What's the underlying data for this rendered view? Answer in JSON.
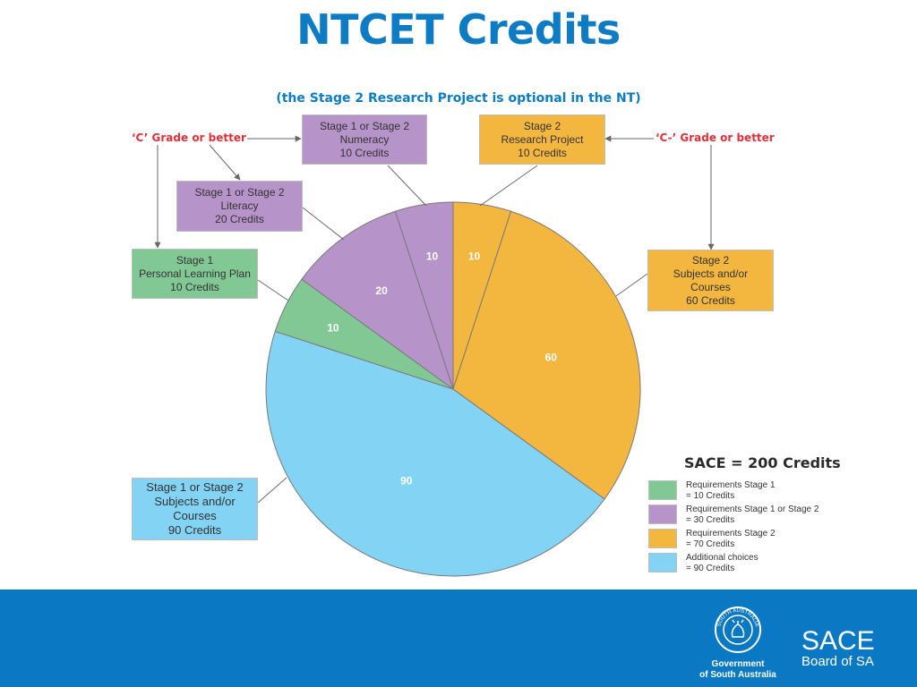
{
  "page": {
    "title": "NTCET Credits",
    "subtitle": "(the Stage 2 Research Project is optional in the NT)"
  },
  "colors": {
    "green": "#82c895",
    "purple": "#b693c8",
    "orange": "#f3b63e",
    "blue": "#83d3f5",
    "title_blue": "#0d7cc4",
    "footer_blue": "#0a78c2",
    "grade_red": "#e0303a"
  },
  "chart_data": {
    "type": "pie",
    "title": "",
    "total_label": "SACE = 200 Credits",
    "start_angle": 0,
    "direction": "clockwise",
    "slices": [
      {
        "label": "Stage 2 Research Project",
        "value": 10,
        "color": "#f3b63e"
      },
      {
        "label": "Stage 2 Subjects and/or Courses",
        "value": 60,
        "color": "#f3b63e"
      },
      {
        "label": "Stage 1 or Stage 2 Subjects and/or Courses",
        "value": 90,
        "color": "#83d3f5"
      },
      {
        "label": "Stage 1 Personal Learning Plan",
        "value": 10,
        "color": "#82c895"
      },
      {
        "label": "Stage 1 or Stage 2 Literacy",
        "value": 20,
        "color": "#b693c8"
      },
      {
        "label": "Stage 1 or Stage 2 Numeracy",
        "value": 10,
        "color": "#b693c8"
      }
    ]
  },
  "callouts": {
    "numeracy": [
      "Stage 1 or Stage 2",
      "Numeracy",
      "10 Credits"
    ],
    "research": [
      "Stage 2",
      "Research Project",
      "10 Credits"
    ],
    "literacy": [
      "Stage 1 or Stage 2",
      "Literacy",
      "20 Credits"
    ],
    "plp": [
      "Stage 1",
      "Personal Learning Plan",
      "10 Credits"
    ],
    "stage2": [
      "Stage 2",
      "Subjects and/or",
      "Courses",
      "60 Credits"
    ],
    "additional": [
      "Stage 1 or Stage 2",
      "Subjects and/or",
      "Courses",
      "90 Credits"
    ]
  },
  "grades": {
    "c_grade": "‘C’ Grade or better",
    "c_minus_grade": "‘C-’ Grade or better"
  },
  "legend": {
    "title": "SACE = 200 Credits",
    "items": [
      {
        "line1": "Requirements Stage 1",
        "line2": "= 10 Credits",
        "color": "#82c895"
      },
      {
        "line1": "Requirements Stage 1 or Stage 2",
        "line2": "= 30 Credits",
        "color": "#b693c8"
      },
      {
        "line1": "Requirements Stage 2",
        "line2": "= 70 Credits",
        "color": "#f3b63e"
      },
      {
        "line1": "Additional choices",
        "line2": "= 90 Credits",
        "color": "#83d3f5"
      }
    ]
  },
  "footer": {
    "gov_line1": "Government",
    "gov_line2": "of South Australia",
    "emblem_text": "SOUTH AUSTRALIA",
    "sace": "SACE",
    "board": "Board of SA"
  }
}
